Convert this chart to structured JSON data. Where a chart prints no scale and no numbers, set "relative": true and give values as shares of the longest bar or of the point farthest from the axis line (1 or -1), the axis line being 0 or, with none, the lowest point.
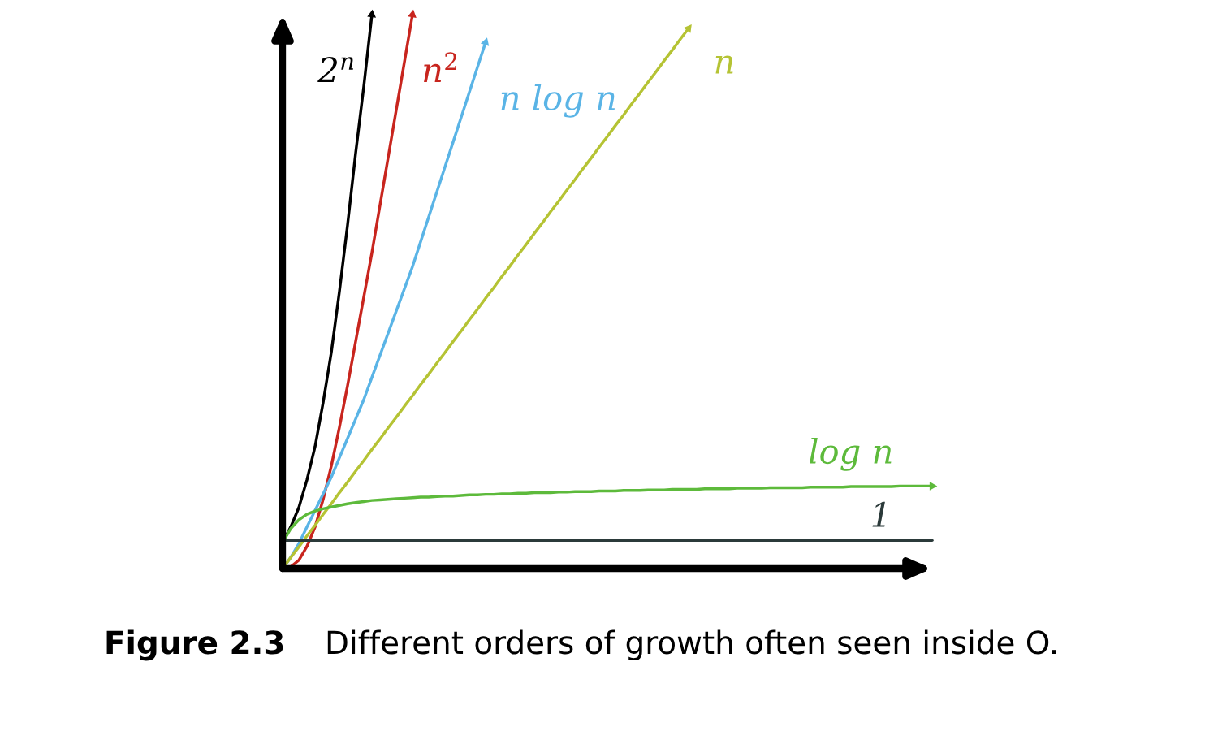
{
  "chart_data": {
    "type": "line",
    "relative": true,
    "categories": [
      null,
      null,
      null,
      null,
      null,
      null,
      null,
      null,
      null,
      null,
      null,
      null,
      null,
      null,
      null,
      null,
      null,
      null,
      null,
      null,
      null,
      null,
      null,
      null,
      null,
      null,
      null,
      null,
      null,
      null,
      null,
      null,
      null,
      null,
      null,
      null,
      null,
      null,
      null,
      null,
      null,
      null,
      null,
      null,
      null,
      null,
      null,
      null,
      null,
      null,
      null,
      null,
      null,
      null,
      null,
      null,
      null,
      null,
      null,
      null,
      null,
      null,
      null,
      null,
      null,
      null,
      null,
      null,
      null,
      null,
      null,
      null,
      null,
      null,
      null,
      null,
      null,
      null,
      null,
      null,
      null
    ],
    "series": [
      {
        "name": "2$^{n}$",
        "color": "#000000",
        "values": [
          0.047,
          0.075,
          0.11,
          0.16,
          0.22,
          0.3,
          0.39,
          0.5,
          0.62,
          0.75,
          0.87,
          1.0,
          null,
          null,
          null,
          null,
          null,
          null,
          null,
          null,
          null,
          null,
          null,
          null,
          null,
          null,
          null,
          null,
          null,
          null,
          null,
          null,
          null,
          null,
          null,
          null,
          null,
          null,
          null,
          null,
          null,
          null,
          null,
          null,
          null,
          null,
          null,
          null,
          null,
          null,
          null,
          null,
          null,
          null,
          null,
          null,
          null,
          null,
          null,
          null,
          null,
          null,
          null,
          null,
          null,
          null,
          null,
          null,
          null,
          null,
          null,
          null,
          null,
          null,
          null,
          null,
          null,
          null,
          null,
          null,
          null
        ]
      },
      {
        "name": "n$^{2}$",
        "color": "#c8251e",
        "values": [
          0,
          0.003,
          0.015,
          0.04,
          0.075,
          0.125,
          0.185,
          0.255,
          0.33,
          0.41,
          0.49,
          0.57,
          0.656,
          0.742,
          0.828,
          0.914,
          1.0,
          null,
          null,
          null,
          null,
          null,
          null,
          null,
          null,
          null,
          null,
          null,
          null,
          null,
          null,
          null,
          null,
          null,
          null,
          null,
          null,
          null,
          null,
          null,
          null,
          null,
          null,
          null,
          null,
          null,
          null,
          null,
          null,
          null,
          null,
          null,
          null,
          null,
          null,
          null,
          null,
          null,
          null,
          null,
          null,
          null,
          null,
          null,
          null,
          null,
          null,
          null,
          null,
          null,
          null,
          null,
          null,
          null,
          null,
          null,
          null,
          null,
          null,
          null,
          null
        ]
      },
      {
        "name": "n log n",
        "color": "#5ab4e6",
        "values": [
          0,
          0.02,
          0.045,
          0.075,
          0.105,
          0.135,
          0.165,
          0.2,
          0.235,
          0.27,
          0.305,
          0.345,
          0.385,
          0.425,
          0.465,
          0.505,
          0.545,
          0.59,
          0.635,
          0.68,
          0.725,
          0.77,
          0.815,
          0.86,
          0.905,
          0.95,
          null,
          null,
          null,
          null,
          null,
          null,
          null,
          null,
          null,
          null,
          null,
          null,
          null,
          null,
          null,
          null,
          null,
          null,
          null,
          null,
          null,
          null,
          null,
          null,
          null,
          null,
          null,
          null,
          null,
          null,
          null,
          null,
          null,
          null,
          null,
          null,
          null,
          null,
          null,
          null,
          null,
          null,
          null,
          null,
          null,
          null,
          null,
          null,
          null,
          null,
          null,
          null,
          null,
          null,
          null
        ]
      },
      {
        "name": "n",
        "color": "#b5c334",
        "values": [
          0,
          0.02,
          0.039,
          0.059,
          0.078,
          0.098,
          0.117,
          0.137,
          0.156,
          0.176,
          0.195,
          0.215,
          0.234,
          0.254,
          0.273,
          0.293,
          0.312,
          0.332,
          0.351,
          0.371,
          0.39,
          0.41,
          0.429,
          0.449,
          0.468,
          0.488,
          0.507,
          0.527,
          0.546,
          0.566,
          0.585,
          0.605,
          0.624,
          0.644,
          0.663,
          0.683,
          0.702,
          0.722,
          0.741,
          0.761,
          0.78,
          0.8,
          0.819,
          0.839,
          0.858,
          0.878,
          0.897,
          0.917,
          0.936,
          0.956,
          0.975,
          null,
          null,
          null,
          null,
          null,
          null,
          null,
          null,
          null,
          null,
          null,
          null,
          null,
          null,
          null,
          null,
          null,
          null,
          null,
          null,
          null,
          null,
          null,
          null,
          null,
          null,
          null,
          null,
          null,
          null
        ]
      },
      {
        "name": "log n",
        "color": "#5dba3b",
        "values": [
          0.047,
          0.072,
          0.088,
          0.098,
          0.104,
          0.108,
          0.111,
          0.114,
          0.117,
          0.119,
          0.121,
          0.123,
          0.124,
          0.125,
          0.126,
          0.127,
          0.128,
          0.129,
          0.129,
          0.13,
          0.131,
          0.131,
          0.132,
          0.133,
          0.133,
          0.134,
          0.134,
          0.135,
          0.135,
          0.136,
          0.136,
          0.137,
          0.137,
          0.137,
          0.138,
          0.138,
          0.139,
          0.139,
          0.139,
          0.14,
          0.14,
          0.14,
          0.141,
          0.141,
          0.141,
          0.142,
          0.142,
          0.142,
          0.143,
          0.143,
          0.143,
          0.143,
          0.144,
          0.144,
          0.144,
          0.144,
          0.145,
          0.145,
          0.145,
          0.145,
          0.146,
          0.146,
          0.146,
          0.146,
          0.146,
          0.147,
          0.147,
          0.147,
          0.147,
          0.147,
          0.148,
          0.148,
          0.148,
          0.148,
          0.148,
          0.148,
          0.149,
          0.149,
          0.149,
          0.149,
          0.149
        ]
      },
      {
        "name": "1",
        "color": "#2b3a3a",
        "values": [
          0.051,
          0.051,
          0.051,
          0.051,
          0.051,
          0.051,
          0.051,
          0.051,
          0.051,
          0.051,
          0.051,
          0.051,
          0.051,
          0.051,
          0.051,
          0.051,
          0.051,
          0.051,
          0.051,
          0.051,
          0.051,
          0.051,
          0.051,
          0.051,
          0.051,
          0.051,
          0.051,
          0.051,
          0.051,
          0.051,
          0.051,
          0.051,
          0.051,
          0.051,
          0.051,
          0.051,
          0.051,
          0.051,
          0.051,
          0.051,
          0.051,
          0.051,
          0.051,
          0.051,
          0.051,
          0.051,
          0.051,
          0.051,
          0.051,
          0.051,
          0.051,
          0.051,
          0.051,
          0.051,
          0.051,
          0.051,
          0.051,
          0.051,
          0.051,
          0.051,
          0.051,
          0.051,
          0.051,
          0.051,
          0.051,
          0.051,
          0.051,
          0.051,
          0.051,
          0.051,
          0.051,
          0.051,
          0.051,
          0.051,
          0.051,
          0.051,
          0.051,
          0.051,
          0.051,
          0.051,
          0.051
        ]
      }
    ],
    "annotations": [
      "Figure 2.3",
      "Different orders of growth often seen inside O."
    ]
  }
}
